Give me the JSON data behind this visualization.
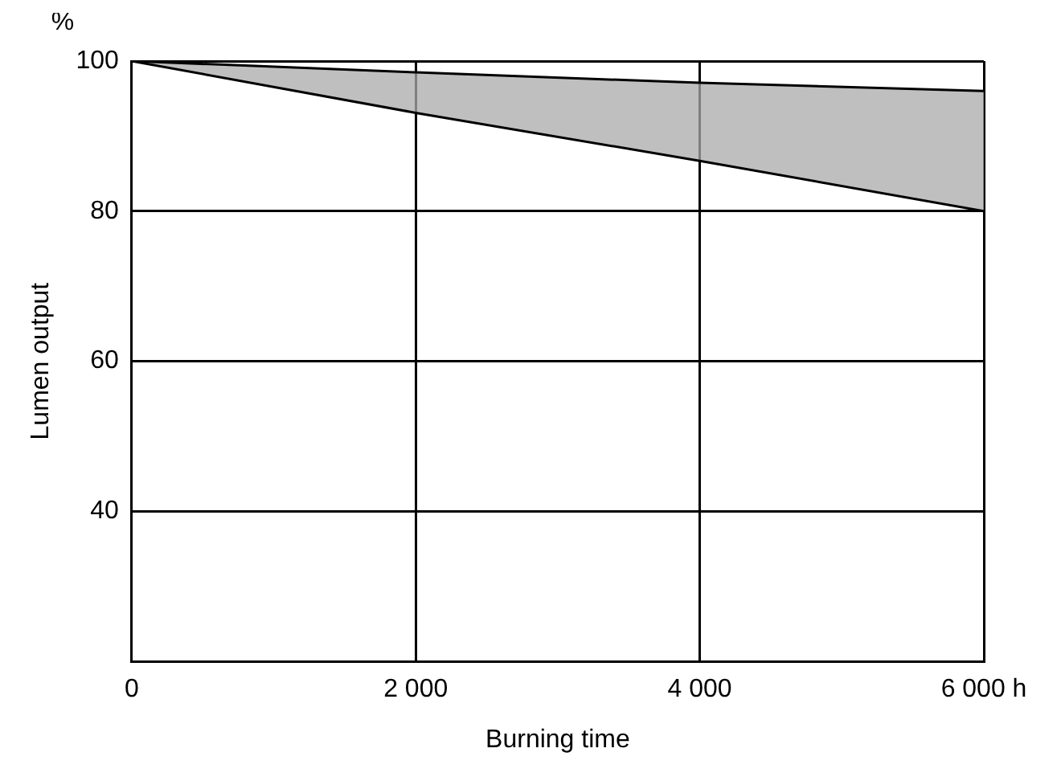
{
  "chart_data": {
    "type": "line",
    "xlabel": "Burning time",
    "ylabel": "Lumen output",
    "annotations": [
      "%"
    ],
    "series": [
      {
        "color": "#000000",
        "x": [
          0,
          2000,
          4000,
          6000
        ],
        "values": [
          100,
          98.5,
          97.1,
          96
        ]
      },
      {
        "color": "#000000",
        "x": [
          0,
          2000,
          4000,
          6000
        ],
        "values": [
          100,
          93.1,
          86.7,
          80
        ]
      }
    ],
    "xlim": [
      0,
      6000
    ],
    "xticks": [
      0,
      {
        "value": 2000,
        "label": "2 000"
      },
      {
        "value": 4000,
        "label": "4 000"
      },
      {
        "value": 6000,
        "label": "6 000 h"
      }
    ],
    "ylim": [
      20,
      100
    ],
    "yticks": [
      40,
      60,
      80,
      100
    ],
    "grid": true,
    "legend": false,
    "marker": "none",
    "line_style": "solid"
  }
}
